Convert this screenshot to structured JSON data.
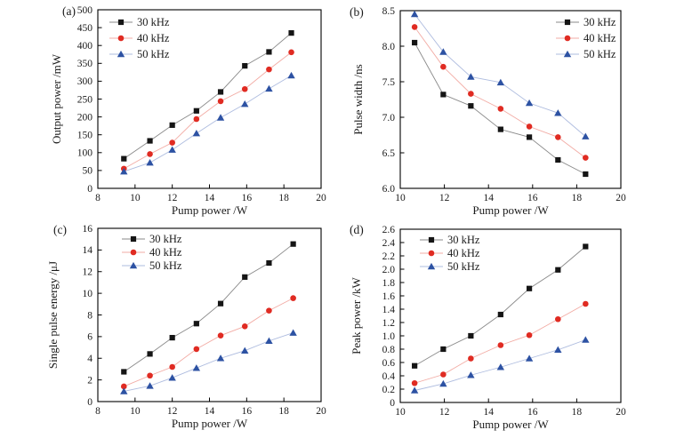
{
  "figure": {
    "background": "#ffffff",
    "text_color": "#1a1a1a",
    "axis_color": "#000000",
    "series_labels": [
      "30 kHz",
      "40 kHz",
      "50 kHz"
    ],
    "colors": {
      "khz30_marker": "#151515",
      "khz30_line": "#8a8a8a",
      "khz40_marker": "#e02b22",
      "khz40_line": "#f2aba4",
      "khz50_marker": "#2d52a3",
      "khz50_line": "#aebcdf"
    }
  },
  "chart_data": [
    {
      "id": "a",
      "panel_label": "(a)",
      "type": "line",
      "xlabel": "Pump power /W",
      "ylabel": "Output power /mW",
      "xlim": [
        8,
        20
      ],
      "ylim": [
        0,
        500
      ],
      "xticks": [
        8,
        10,
        12,
        14,
        16,
        18,
        20
      ],
      "yticks": [
        0,
        50,
        100,
        150,
        200,
        250,
        300,
        350,
        400,
        450,
        500
      ],
      "ytick_labels": [
        "0",
        "50",
        "100",
        "150",
        "200",
        "250",
        "300",
        "350",
        "400",
        "450",
        "500"
      ],
      "grid": false,
      "legend_position": "top-left",
      "x": [
        9.4,
        10.8,
        12.0,
        13.3,
        14.6,
        15.9,
        17.2,
        18.4
      ],
      "series": [
        {
          "name": "30 kHz",
          "marker": "square",
          "marker_color": "#151515",
          "line_color": "#8a8a8a",
          "values": [
            83,
            133,
            177,
            217,
            270,
            343,
            382,
            435
          ]
        },
        {
          "name": "40 kHz",
          "marker": "circle",
          "marker_color": "#e02b22",
          "line_color": "#f2aba4",
          "values": [
            55,
            96,
            128,
            194,
            244,
            278,
            333,
            381
          ]
        },
        {
          "name": "50 kHz",
          "marker": "triangle-up",
          "marker_color": "#2d52a3",
          "line_color": "#aebcdf",
          "values": [
            47,
            72,
            108,
            154,
            198,
            236,
            279,
            316
          ]
        }
      ]
    },
    {
      "id": "b",
      "panel_label": "(b)",
      "type": "line",
      "xlabel": "Pump power /W",
      "ylabel": "Pulse width /ns",
      "xlim": [
        10,
        20
      ],
      "ylim": [
        6.0,
        8.5
      ],
      "xticks": [
        10,
        12,
        14,
        16,
        18,
        20
      ],
      "yticks": [
        6.0,
        6.5,
        7.0,
        7.5,
        8.0,
        8.5
      ],
      "ytick_labels": [
        "6.0",
        "6.5",
        "7.0",
        "7.5",
        "8.0",
        "8.5"
      ],
      "grid": false,
      "legend_position": "top-right",
      "x": [
        10.65,
        11.95,
        13.2,
        14.55,
        15.85,
        17.15,
        18.4
      ],
      "series": [
        {
          "name": "30 kHz",
          "marker": "square",
          "marker_color": "#151515",
          "line_color": "#8a8a8a",
          "values": [
            8.05,
            7.32,
            7.16,
            6.83,
            6.72,
            6.4,
            6.2
          ]
        },
        {
          "name": "40 kHz",
          "marker": "circle",
          "marker_color": "#e02b22",
          "line_color": "#f2aba4",
          "values": [
            8.27,
            7.71,
            7.33,
            7.12,
            6.87,
            6.72,
            6.43
          ]
        },
        {
          "name": "50 kHz",
          "marker": "triangle-up",
          "marker_color": "#2d52a3",
          "line_color": "#aebcdf",
          "values": [
            8.45,
            7.92,
            7.57,
            7.49,
            7.2,
            7.06,
            6.73
          ]
        }
      ]
    },
    {
      "id": "c",
      "panel_label": "(c)",
      "type": "line",
      "xlabel": "Pump power /W",
      "ylabel": "Single pulse energy /μJ",
      "xlim": [
        8,
        20
      ],
      "ylim": [
        0,
        16
      ],
      "xticks": [
        8,
        10,
        12,
        14,
        16,
        18,
        20
      ],
      "yticks": [
        0,
        2,
        4,
        6,
        8,
        10,
        12,
        14,
        16
      ],
      "ytick_labels": [
        "0",
        "2",
        "4",
        "6",
        "8",
        "10",
        "12",
        "14",
        "16"
      ],
      "grid": false,
      "legend_position": "top-left",
      "x": [
        9.4,
        10.8,
        12.0,
        13.3,
        14.6,
        15.9,
        17.2,
        18.5
      ],
      "series": [
        {
          "name": "30 kHz",
          "marker": "square",
          "marker_color": "#151515",
          "line_color": "#8a8a8a",
          "values": [
            2.75,
            4.4,
            5.9,
            7.2,
            9.05,
            11.5,
            12.8,
            14.55
          ]
        },
        {
          "name": "40 kHz",
          "marker": "circle",
          "marker_color": "#e02b22",
          "line_color": "#f2aba4",
          "values": [
            1.4,
            2.4,
            3.2,
            4.85,
            6.1,
            6.95,
            8.4,
            9.55
          ]
        },
        {
          "name": "50 kHz",
          "marker": "triangle-up",
          "marker_color": "#2d52a3",
          "line_color": "#aebcdf",
          "values": [
            0.95,
            1.45,
            2.2,
            3.1,
            4.0,
            4.7,
            5.6,
            6.35
          ]
        }
      ]
    },
    {
      "id": "d",
      "panel_label": "(d)",
      "type": "line",
      "xlabel": "Pump power /W",
      "ylabel": "Peak power /kW",
      "xlim": [
        10,
        20
      ],
      "ylim": [
        0,
        2.6
      ],
      "xticks": [
        10,
        12,
        14,
        16,
        18,
        20
      ],
      "yticks": [
        0,
        0.2,
        0.4,
        0.6,
        0.8,
        1.0,
        1.2,
        1.4,
        1.6,
        1.8,
        2.0,
        2.2,
        2.4,
        2.6
      ],
      "ytick_labels": [
        "0",
        "0.2",
        "0.4",
        "0.6",
        "0.8",
        "1.0",
        "1.2",
        "1.4",
        "1.6",
        "1.8",
        "2.0",
        "2.2",
        "2.4",
        "2.6"
      ],
      "grid": false,
      "legend_position": "top-left",
      "x": [
        10.65,
        11.95,
        13.2,
        14.55,
        15.85,
        17.15,
        18.4
      ],
      "series": [
        {
          "name": "30 kHz",
          "marker": "square",
          "marker_color": "#151515",
          "line_color": "#8a8a8a",
          "values": [
            0.55,
            0.8,
            1.0,
            1.32,
            1.71,
            1.99,
            2.34
          ]
        },
        {
          "name": "40 kHz",
          "marker": "circle",
          "marker_color": "#e02b22",
          "line_color": "#f2aba4",
          "values": [
            0.29,
            0.42,
            0.66,
            0.86,
            1.01,
            1.25,
            1.48
          ]
        },
        {
          "name": "50 kHz",
          "marker": "triangle-up",
          "marker_color": "#2d52a3",
          "line_color": "#aebcdf",
          "values": [
            0.18,
            0.28,
            0.41,
            0.53,
            0.66,
            0.79,
            0.94
          ]
        }
      ]
    }
  ]
}
